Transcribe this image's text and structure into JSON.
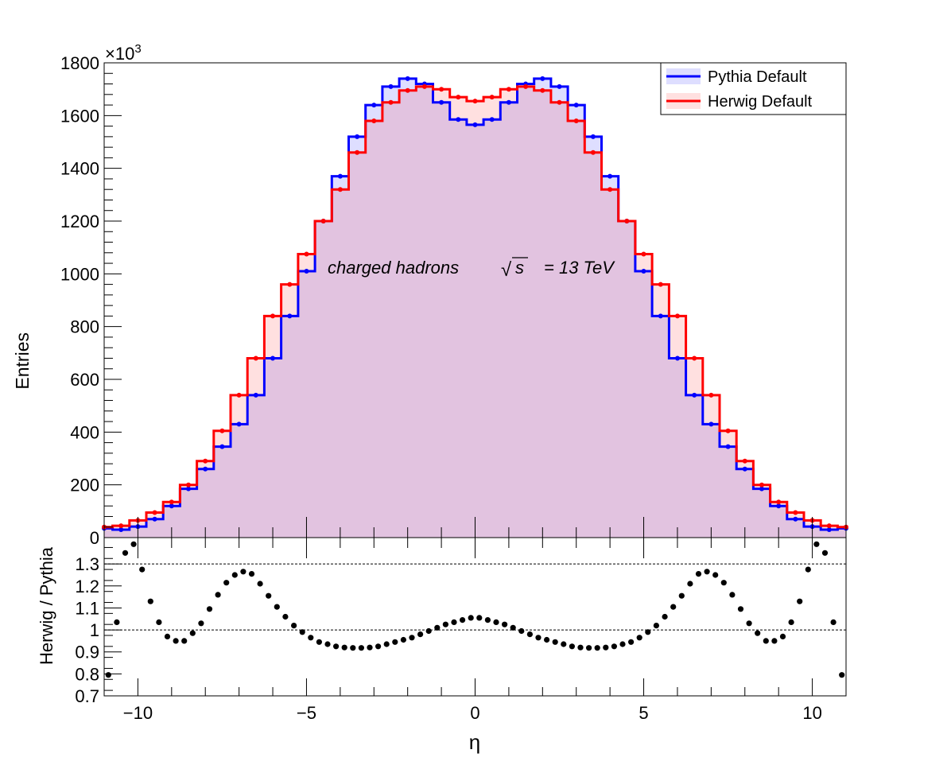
{
  "chart_data": [
    {
      "type": "line",
      "panel": "top",
      "ylabel": "Entries",
      "exponent_base": "×10",
      "exponent_power": "3",
      "xlim": [
        -11,
        11
      ],
      "ylim": [
        0,
        1800
      ],
      "yticks": [
        0,
        200,
        400,
        600,
        800,
        1000,
        1200,
        1400,
        1600,
        1800
      ],
      "ytick_labels": [
        "0",
        "200",
        "400",
        "600",
        "800",
        "1000",
        "1200",
        "1400",
        "1600",
        "1800"
      ],
      "annotation": {
        "text": "charged hadrons",
        "sqrt_symbol": "√",
        "sqrt_arg": "s",
        "energy": "= 13 TeV"
      },
      "legend": {
        "placement": "top-right",
        "entries": [
          "Pythia Default",
          "Herwig Default"
        ]
      },
      "series": [
        {
          "name": "Pythia Default",
          "color": "#0000ff",
          "fill": "rgba(0,0,255,0.13)",
          "x": [
            -11,
            -10.5,
            -10,
            -9.5,
            -9,
            -8.5,
            -8,
            -7.5,
            -7,
            -6.5,
            -6,
            -5.5,
            -5,
            -4.5,
            -4,
            -3.5,
            -3,
            -2.5,
            -2,
            -1.5,
            -1,
            -0.5,
            0,
            0.5,
            1,
            1.5,
            2,
            2.5,
            3,
            3.5,
            4,
            4.5,
            5,
            5.5,
            6,
            6.5,
            7,
            7.5,
            8,
            8.5,
            9,
            9.5,
            10,
            10.5,
            11
          ],
          "values": [
            35,
            30,
            42,
            70,
            120,
            185,
            260,
            345,
            430,
            540,
            680,
            840,
            1010,
            1200,
            1370,
            1520,
            1640,
            1710,
            1740,
            1720,
            1650,
            1585,
            1565,
            1585,
            1650,
            1720,
            1740,
            1710,
            1640,
            1520,
            1370,
            1200,
            1010,
            840,
            680,
            540,
            430,
            345,
            260,
            185,
            120,
            70,
            42,
            30,
            35
          ]
        },
        {
          "name": "Herwig Default",
          "color": "#ff0000",
          "fill": "rgba(255,0,0,0.12)",
          "x": [
            -11,
            -10.5,
            -10,
            -9.5,
            -9,
            -8.5,
            -8,
            -7.5,
            -7,
            -6.5,
            -6,
            -5.5,
            -5,
            -4.5,
            -4,
            -3.5,
            -3,
            -2.5,
            -2,
            -1.5,
            -1,
            -0.5,
            0,
            0.5,
            1,
            1.5,
            2,
            2.5,
            3,
            3.5,
            4,
            4.5,
            5,
            5.5,
            6,
            6.5,
            7,
            7.5,
            8,
            8.5,
            9,
            9.5,
            10,
            10.5,
            11
          ],
          "values": [
            40,
            45,
            65,
            95,
            135,
            200,
            290,
            405,
            540,
            680,
            840,
            960,
            1075,
            1200,
            1320,
            1460,
            1580,
            1650,
            1695,
            1710,
            1700,
            1670,
            1655,
            1670,
            1700,
            1710,
            1695,
            1650,
            1580,
            1460,
            1320,
            1200,
            1075,
            960,
            840,
            680,
            540,
            405,
            290,
            200,
            135,
            95,
            65,
            45,
            40
          ]
        }
      ]
    },
    {
      "type": "scatter",
      "panel": "bottom",
      "ylabel": "Herwig / Pythia",
      "xlabel": "η",
      "xlim": [
        -11,
        11
      ],
      "ylim": [
        0.7,
        1.42
      ],
      "xticks": [
        -10,
        -5,
        0,
        5,
        10
      ],
      "xtick_labels": [
        "−10",
        "−5",
        "0",
        "5",
        "10"
      ],
      "yticks": [
        0.7,
        0.8,
        0.9,
        1.0,
        1.1,
        1.2,
        1.3
      ],
      "ytick_labels": [
        "0.7",
        "0.8",
        "0.9",
        "1",
        "1.1",
        "1.2",
        "1.3"
      ],
      "reference_lines": [
        1.0,
        1.3
      ],
      "x": [
        -10.875,
        -10.625,
        -10.375,
        -10.125,
        -9.875,
        -9.625,
        -9.375,
        -9.125,
        -8.875,
        -8.625,
        -8.375,
        -8.125,
        -7.875,
        -7.625,
        -7.375,
        -7.125,
        -6.875,
        -6.625,
        -6.375,
        -6.125,
        -5.875,
        -5.625,
        -5.375,
        -5.125,
        -4.875,
        -4.625,
        -4.375,
        -4.125,
        -3.875,
        -3.625,
        -3.375,
        -3.125,
        -2.875,
        -2.625,
        -2.375,
        -2.125,
        -1.875,
        -1.625,
        -1.375,
        -1.125,
        -0.875,
        -0.625,
        -0.375,
        -0.125,
        0.125,
        0.375,
        0.625,
        0.875,
        1.125,
        1.375,
        1.625,
        1.875,
        2.125,
        2.375,
        2.625,
        2.875,
        3.125,
        3.375,
        3.625,
        3.875,
        4.125,
        4.375,
        4.625,
        4.875,
        5.125,
        5.375,
        5.625,
        5.875,
        6.125,
        6.375,
        6.625,
        6.875,
        7.125,
        7.375,
        7.625,
        7.875,
        8.125,
        8.375,
        8.625,
        8.875,
        9.125,
        9.375,
        9.625,
        9.875,
        10.125,
        10.375,
        10.625,
        10.875
      ],
      "values": [
        0.795,
        1.035,
        1.35,
        1.39,
        1.275,
        1.13,
        1.035,
        0.97,
        0.95,
        0.95,
        0.985,
        1.03,
        1.095,
        1.16,
        1.215,
        1.25,
        1.265,
        1.255,
        1.21,
        1.155,
        1.105,
        1.06,
        1.02,
        0.99,
        0.965,
        0.945,
        0.935,
        0.925,
        0.92,
        0.918,
        0.918,
        0.92,
        0.925,
        0.935,
        0.945,
        0.955,
        0.965,
        0.98,
        0.995,
        1.01,
        1.025,
        1.035,
        1.045,
        1.055,
        1.055,
        1.045,
        1.035,
        1.025,
        1.01,
        0.995,
        0.98,
        0.965,
        0.955,
        0.945,
        0.935,
        0.925,
        0.92,
        0.918,
        0.918,
        0.92,
        0.925,
        0.935,
        0.945,
        0.965,
        0.99,
        1.02,
        1.06,
        1.105,
        1.155,
        1.21,
        1.255,
        1.265,
        1.25,
        1.215,
        1.16,
        1.095,
        1.03,
        0.985,
        0.95,
        0.95,
        0.97,
        1.035,
        1.13,
        1.275,
        1.39,
        1.35,
        1.035,
        0.795
      ]
    }
  ]
}
